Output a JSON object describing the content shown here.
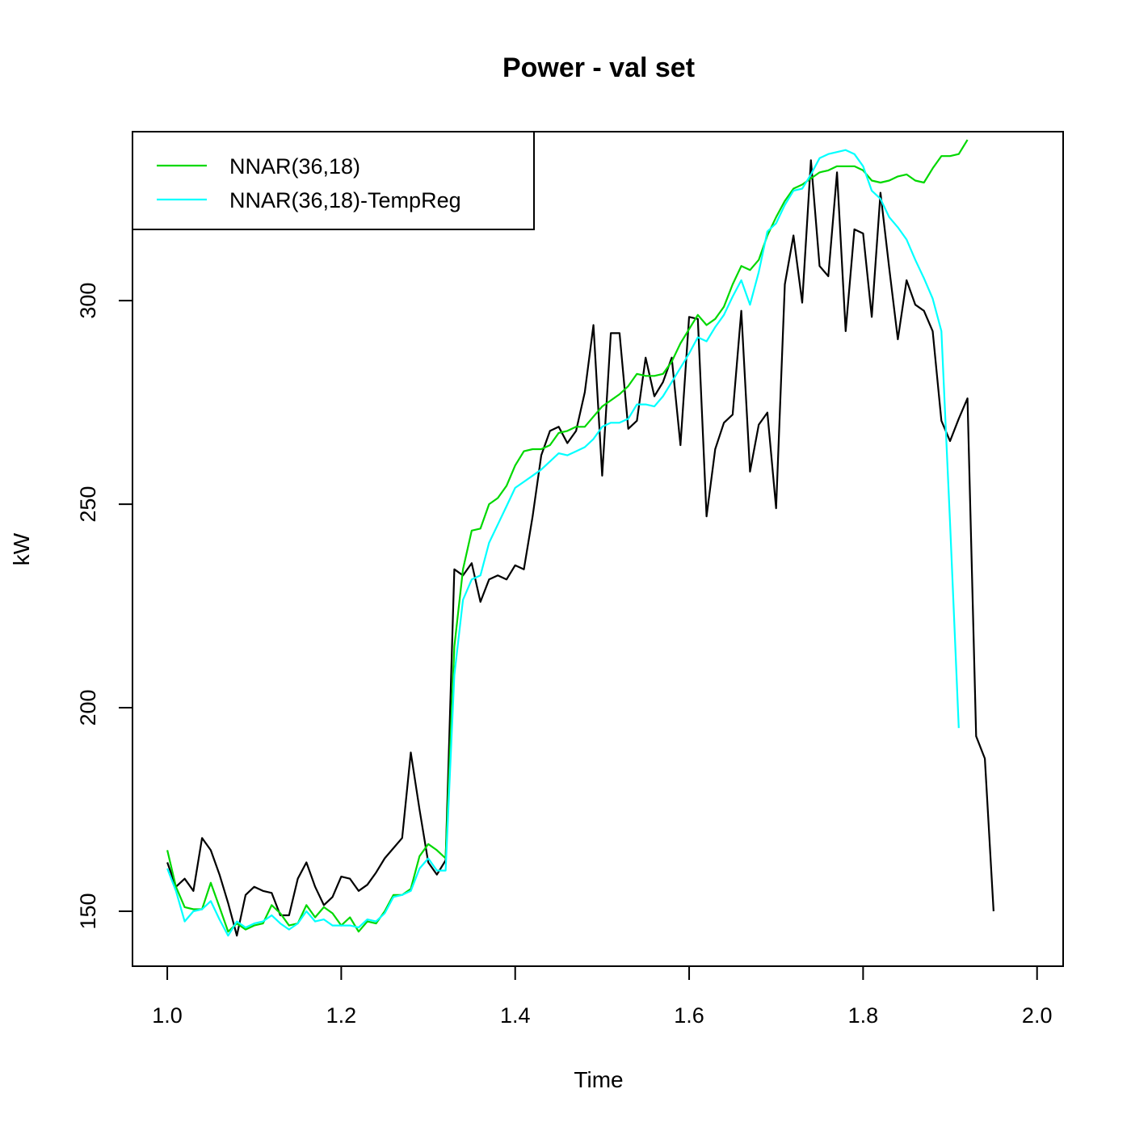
{
  "chart_data": {
    "type": "line",
    "title": "Power - val set",
    "xlabel": "Time",
    "ylabel": "kW",
    "xlim": [
      0.96,
      2.03
    ],
    "ylim": [
      136.5,
      341.5
    ],
    "x_ticks": [
      1.0,
      1.2,
      1.4,
      1.6,
      1.8,
      2.0
    ],
    "x_tick_labels": [
      "1.0",
      "1.2",
      "1.4",
      "1.6",
      "1.8",
      "2.0"
    ],
    "y_ticks": [
      150,
      200,
      250,
      300
    ],
    "y_tick_labels": [
      "150",
      "200",
      "250",
      "300"
    ],
    "x_start": 1.0,
    "x_step": 0.01,
    "legend_position": "top-left",
    "series": [
      {
        "name": "",
        "color": "#000000",
        "values": [
          162,
          156,
          158,
          155,
          168,
          165,
          159,
          152,
          144,
          154,
          156,
          155,
          154.5,
          149,
          149,
          158,
          162,
          156,
          151.5,
          153.5,
          158.5,
          158,
          155,
          156.5,
          159.5,
          163,
          165.5,
          168,
          189,
          175,
          162,
          159,
          162.5,
          234,
          232.5,
          235.5,
          226,
          231.5,
          232.5,
          231.5,
          235,
          234,
          247,
          262,
          268,
          269,
          265,
          268,
          277.5,
          294,
          257,
          292,
          292,
          268.5,
          270.5,
          286,
          276.5,
          280,
          286,
          264.5,
          296,
          295.5,
          247,
          263.5,
          270,
          272,
          297.5,
          258,
          269.5,
          272.5,
          249,
          304,
          316,
          299.5,
          334.5,
          308.5,
          306,
          331.5,
          292.5,
          317.5,
          316.5,
          296,
          326.5,
          308,
          290.5,
          305,
          299,
          297.5,
          292.5,
          270.5,
          265.5,
          271,
          276,
          193,
          187.5,
          150
        ]
      },
      {
        "name": "NNAR(36,18)",
        "color": "#00d800",
        "values": [
          165,
          156,
          151,
          150.5,
          150.5,
          157,
          151,
          145,
          147,
          145.5,
          146.5,
          147,
          151.5,
          149.5,
          146.5,
          147,
          151.5,
          148.5,
          151,
          149.5,
          146.5,
          148.5,
          145,
          147.5,
          147,
          150,
          154,
          154,
          155.5,
          163.5,
          166.5,
          165,
          163,
          215,
          234,
          243.5,
          244,
          250,
          251.5,
          254.5,
          259.5,
          263,
          263.5,
          263.5,
          264.5,
          267.5,
          268,
          269,
          269,
          271.5,
          274,
          275.5,
          277,
          279,
          282,
          281.5,
          281.5,
          282,
          285,
          289.5,
          293,
          296.5,
          294,
          295.5,
          298.5,
          304,
          308.5,
          307.5,
          310,
          316,
          320.5,
          324.5,
          327.5,
          328.5,
          330,
          331.5,
          332,
          333,
          333,
          333,
          332,
          329.5,
          329,
          329.5,
          330.5,
          331,
          329.5,
          329,
          332.5,
          335.5,
          335.5,
          336,
          339.5
        ]
      },
      {
        "name": "NNAR(36,18)-TempReg",
        "color": "#00ffff",
        "values": [
          160.5,
          155,
          147.5,
          150,
          150.5,
          152.5,
          148,
          144,
          147.5,
          146,
          147,
          147.5,
          149,
          147,
          145.5,
          147,
          150,
          147.5,
          148,
          146.5,
          146.5,
          146.5,
          146,
          148,
          147.5,
          149.5,
          153.5,
          154,
          155,
          160.5,
          163,
          160,
          160,
          208,
          226.5,
          231.5,
          232.5,
          240.5,
          245,
          249.5,
          254,
          255.5,
          257,
          258.5,
          260.5,
          262.5,
          262,
          263,
          264,
          266,
          269,
          270,
          270,
          271,
          274.5,
          274.5,
          274,
          276.5,
          280,
          283.5,
          287,
          291,
          290,
          293.5,
          296.5,
          301,
          305,
          299,
          307,
          317,
          319,
          323.5,
          327,
          327.5,
          331,
          335,
          336,
          336.5,
          337,
          336,
          333,
          327,
          325,
          320.5,
          318,
          315,
          310,
          305.5,
          300.5,
          292.5,
          245.5,
          195
        ]
      }
    ]
  }
}
